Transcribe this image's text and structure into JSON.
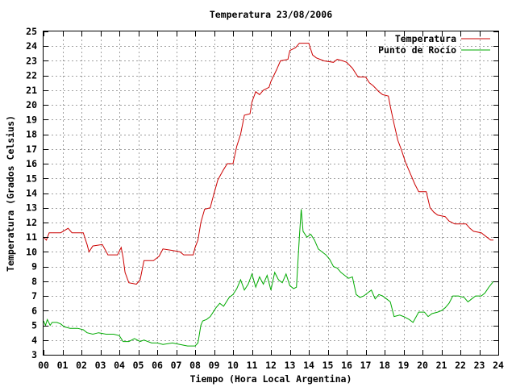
{
  "chart_data": {
    "type": "line",
    "title": "Temperatura 23/08/2006",
    "xlabel": "Tiempo (Hora Local Argentina)",
    "ylabel": "Temperatura (Grados Celsius)",
    "xlim": [
      0,
      24
    ],
    "ylim": [
      3,
      25
    ],
    "x_ticks": [
      "00",
      "01",
      "02",
      "03",
      "04",
      "05",
      "06",
      "07",
      "08",
      "09",
      "10",
      "11",
      "12",
      "13",
      "14",
      "15",
      "16",
      "17",
      "18",
      "19",
      "20",
      "21",
      "22",
      "23",
      "24"
    ],
    "y_ticks": [
      "3",
      "4",
      "5",
      "6",
      "7",
      "8",
      "9",
      "10",
      "11",
      "12",
      "13",
      "14",
      "15",
      "16",
      "17",
      "18",
      "19",
      "20",
      "21",
      "22",
      "23",
      "24",
      "25"
    ],
    "grid": true,
    "legend_position": "top-right",
    "series": [
      {
        "name": "Temperatura",
        "color": "#cc0000",
        "points": [
          [
            0.0,
            11.0
          ],
          [
            0.15,
            10.8
          ],
          [
            0.3,
            11.3
          ],
          [
            0.9,
            11.3
          ],
          [
            1.3,
            11.6
          ],
          [
            1.5,
            11.3
          ],
          [
            2.1,
            11.3
          ],
          [
            2.3,
            10.5
          ],
          [
            2.4,
            10.0
          ],
          [
            2.6,
            10.4
          ],
          [
            3.1,
            10.5
          ],
          [
            3.4,
            9.8
          ],
          [
            3.9,
            9.8
          ],
          [
            4.1,
            10.3
          ],
          [
            4.2,
            9.6
          ],
          [
            4.3,
            8.6
          ],
          [
            4.5,
            7.9
          ],
          [
            4.9,
            7.8
          ],
          [
            5.1,
            8.1
          ],
          [
            5.3,
            9.4
          ],
          [
            5.8,
            9.4
          ],
          [
            6.1,
            9.7
          ],
          [
            6.3,
            10.2
          ],
          [
            6.8,
            10.1
          ],
          [
            7.2,
            10.0
          ],
          [
            7.4,
            9.8
          ],
          [
            7.9,
            9.8
          ],
          [
            8.0,
            10.3
          ],
          [
            8.15,
            10.8
          ],
          [
            8.3,
            12.0
          ],
          [
            8.5,
            12.9
          ],
          [
            8.8,
            13.0
          ],
          [
            8.9,
            13.5
          ],
          [
            9.2,
            14.9
          ],
          [
            9.5,
            15.6
          ],
          [
            9.7,
            16.0
          ],
          [
            10.0,
            16.0
          ],
          [
            10.2,
            17.2
          ],
          [
            10.4,
            18.0
          ],
          [
            10.6,
            19.3
          ],
          [
            10.9,
            19.4
          ],
          [
            11.0,
            20.2
          ],
          [
            11.2,
            20.9
          ],
          [
            11.4,
            20.7
          ],
          [
            11.6,
            21.0
          ],
          [
            11.9,
            21.2
          ],
          [
            12.0,
            21.6
          ],
          [
            12.3,
            22.4
          ],
          [
            12.5,
            23.0
          ],
          [
            12.9,
            23.1
          ],
          [
            13.0,
            23.7
          ],
          [
            13.3,
            23.9
          ],
          [
            13.5,
            24.2
          ],
          [
            14.0,
            24.2
          ],
          [
            14.2,
            23.4
          ],
          [
            14.4,
            23.2
          ],
          [
            14.6,
            23.1
          ],
          [
            14.8,
            23.0
          ],
          [
            15.3,
            22.9
          ],
          [
            15.5,
            23.1
          ],
          [
            15.8,
            23.0
          ],
          [
            16.0,
            22.9
          ],
          [
            16.3,
            22.5
          ],
          [
            16.6,
            21.9
          ],
          [
            17.0,
            21.9
          ],
          [
            17.2,
            21.5
          ],
          [
            17.4,
            21.3
          ],
          [
            17.7,
            20.9
          ],
          [
            17.9,
            20.7
          ],
          [
            18.2,
            20.6
          ],
          [
            18.3,
            19.9
          ],
          [
            18.5,
            18.7
          ],
          [
            18.7,
            17.6
          ],
          [
            18.9,
            16.9
          ],
          [
            19.1,
            16.1
          ],
          [
            19.4,
            15.2
          ],
          [
            19.6,
            14.6
          ],
          [
            19.8,
            14.1
          ],
          [
            20.2,
            14.1
          ],
          [
            20.4,
            13.0
          ],
          [
            20.6,
            12.7
          ],
          [
            20.8,
            12.5
          ],
          [
            21.2,
            12.4
          ],
          [
            21.4,
            12.1
          ],
          [
            21.7,
            11.9
          ],
          [
            22.3,
            11.9
          ],
          [
            22.5,
            11.6
          ],
          [
            22.7,
            11.4
          ],
          [
            23.1,
            11.3
          ],
          [
            23.4,
            11.0
          ],
          [
            23.6,
            10.8
          ],
          [
            23.75,
            10.8
          ]
        ]
      },
      {
        "name": "Punto de Rocío",
        "color": "#00aa00",
        "points": [
          [
            0.0,
            5.3
          ],
          [
            0.1,
            5.0
          ],
          [
            0.2,
            5.4
          ],
          [
            0.35,
            5.0
          ],
          [
            0.45,
            5.2
          ],
          [
            0.7,
            5.2
          ],
          [
            0.9,
            5.1
          ],
          [
            1.1,
            4.9
          ],
          [
            1.4,
            4.8
          ],
          [
            1.8,
            4.8
          ],
          [
            2.1,
            4.7
          ],
          [
            2.3,
            4.5
          ],
          [
            2.6,
            4.4
          ],
          [
            2.9,
            4.5
          ],
          [
            3.3,
            4.4
          ],
          [
            3.7,
            4.4
          ],
          [
            4.0,
            4.3
          ],
          [
            4.2,
            3.9
          ],
          [
            4.5,
            3.9
          ],
          [
            4.8,
            4.1
          ],
          [
            5.1,
            3.9
          ],
          [
            5.3,
            4.0
          ],
          [
            5.7,
            3.8
          ],
          [
            6.0,
            3.8
          ],
          [
            6.3,
            3.7
          ],
          [
            6.8,
            3.8
          ],
          [
            7.2,
            3.7
          ],
          [
            7.6,
            3.6
          ],
          [
            8.0,
            3.6
          ],
          [
            8.15,
            3.8
          ],
          [
            8.3,
            5.0
          ],
          [
            8.4,
            5.3
          ],
          [
            8.6,
            5.4
          ],
          [
            8.8,
            5.6
          ],
          [
            9.1,
            6.2
          ],
          [
            9.3,
            6.5
          ],
          [
            9.5,
            6.3
          ],
          [
            9.8,
            6.9
          ],
          [
            10.0,
            7.1
          ],
          [
            10.2,
            7.5
          ],
          [
            10.4,
            8.1
          ],
          [
            10.6,
            7.4
          ],
          [
            10.8,
            7.8
          ],
          [
            11.0,
            8.5
          ],
          [
            11.2,
            7.6
          ],
          [
            11.4,
            8.3
          ],
          [
            11.6,
            7.8
          ],
          [
            11.8,
            8.4
          ],
          [
            12.0,
            7.4
          ],
          [
            12.2,
            8.6
          ],
          [
            12.4,
            8.1
          ],
          [
            12.6,
            7.9
          ],
          [
            12.8,
            8.5
          ],
          [
            13.0,
            7.7
          ],
          [
            13.2,
            7.5
          ],
          [
            13.35,
            7.6
          ],
          [
            13.5,
            11.0
          ],
          [
            13.6,
            12.9
          ],
          [
            13.7,
            11.4
          ],
          [
            13.9,
            11.0
          ],
          [
            14.1,
            11.2
          ],
          [
            14.3,
            10.8
          ],
          [
            14.5,
            10.2
          ],
          [
            14.7,
            10.0
          ],
          [
            14.9,
            9.8
          ],
          [
            15.1,
            9.5
          ],
          [
            15.3,
            9.0
          ],
          [
            15.5,
            8.9
          ],
          [
            15.7,
            8.6
          ],
          [
            15.9,
            8.4
          ],
          [
            16.1,
            8.2
          ],
          [
            16.3,
            8.3
          ],
          [
            16.5,
            7.1
          ],
          [
            16.7,
            6.9
          ],
          [
            16.9,
            7.0
          ],
          [
            17.1,
            7.2
          ],
          [
            17.3,
            7.4
          ],
          [
            17.5,
            6.8
          ],
          [
            17.7,
            7.1
          ],
          [
            17.9,
            7.0
          ],
          [
            18.1,
            6.8
          ],
          [
            18.3,
            6.6
          ],
          [
            18.5,
            5.6
          ],
          [
            18.8,
            5.7
          ],
          [
            19.0,
            5.6
          ],
          [
            19.3,
            5.4
          ],
          [
            19.5,
            5.2
          ],
          [
            19.8,
            5.9
          ],
          [
            20.1,
            5.9
          ],
          [
            20.3,
            5.6
          ],
          [
            20.5,
            5.8
          ],
          [
            20.8,
            5.9
          ],
          [
            21.0,
            6.0
          ],
          [
            21.2,
            6.2
          ],
          [
            21.4,
            6.5
          ],
          [
            21.6,
            7.0
          ],
          [
            21.9,
            7.0
          ],
          [
            22.2,
            6.9
          ],
          [
            22.4,
            6.6
          ],
          [
            22.6,
            6.8
          ],
          [
            22.8,
            7.0
          ],
          [
            23.1,
            7.0
          ],
          [
            23.3,
            7.2
          ],
          [
            23.5,
            7.6
          ],
          [
            23.75,
            8.0
          ]
        ]
      }
    ]
  }
}
